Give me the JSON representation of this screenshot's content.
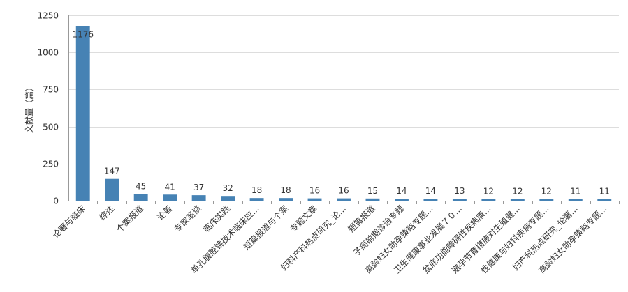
{
  "chart_data": {
    "type": "bar",
    "title": "",
    "xlabel": "",
    "ylabel": "文献量（篇）",
    "ylim": [
      0,
      1250
    ],
    "yticks": [
      0,
      250,
      500,
      750,
      1000,
      1250
    ],
    "grid": true,
    "legend": "none",
    "bar_color": "#4682B4",
    "grid_color": "#dddddd",
    "axis_color": "#999999",
    "categories": [
      "论著与临床",
      "综述",
      "个案报道",
      "论著",
      "专家笔谈",
      "临床实践",
      "单孔腹腔镜技术临床应...",
      "短篇报道与个案",
      "专题文章",
      "妇科产科热点研究_论...",
      "短篇报道",
      "子痫前期诊治专题",
      "高龄妇女助孕策略专题...",
      "卫生健康事业发展７０...",
      "盆底功能障碍性疾病康...",
      "避孕节育措施对生殖健...",
      "性健康与妇科疾病专题...",
      "妇产科热点研究_论著...",
      "高龄妇女助孕策略专题..."
    ],
    "values": [
      1176,
      147,
      45,
      41,
      37,
      32,
      18,
      18,
      16,
      16,
      15,
      14,
      14,
      13,
      12,
      12,
      12,
      11,
      11
    ]
  }
}
